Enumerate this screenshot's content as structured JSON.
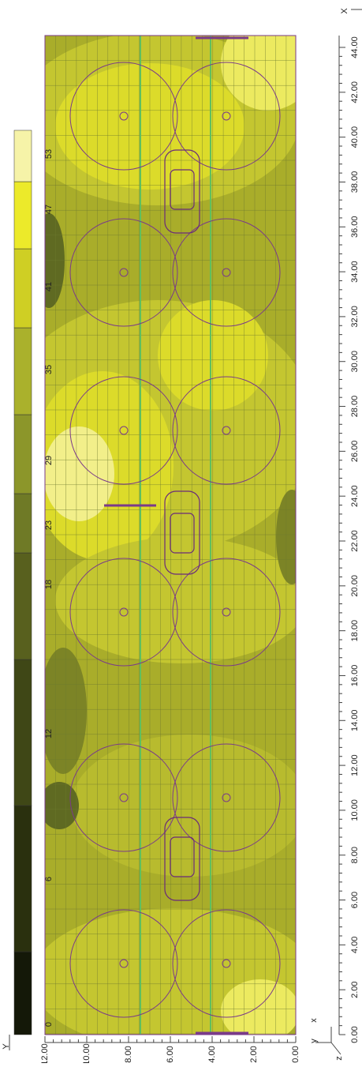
{
  "legend": {
    "labels": [
      "0",
      "6",
      "12",
      "18",
      "23",
      "29",
      "35",
      "41",
      "47",
      "53"
    ]
  },
  "x_axis": {
    "name": "X",
    "labels": [
      "0.00",
      "2.00",
      "4.00",
      "6.00",
      "8.00",
      "10.00",
      "12.00",
      "14.00",
      "16.00",
      "18.00",
      "20.00",
      "22.00",
      "24.00",
      "26.00",
      "28.00",
      "30.00",
      "32.00",
      "34.00",
      "36.00",
      "38.00",
      "40.00",
      "42.00",
      "44.00"
    ]
  },
  "y_axis": {
    "name": "Y",
    "labels": [
      "12.00",
      "10.00",
      "8.00",
      "6.00",
      "4.00",
      "2.00",
      "0.00"
    ]
  },
  "axes_icon": {
    "x": "x",
    "y": "y",
    "z": "z"
  }
}
